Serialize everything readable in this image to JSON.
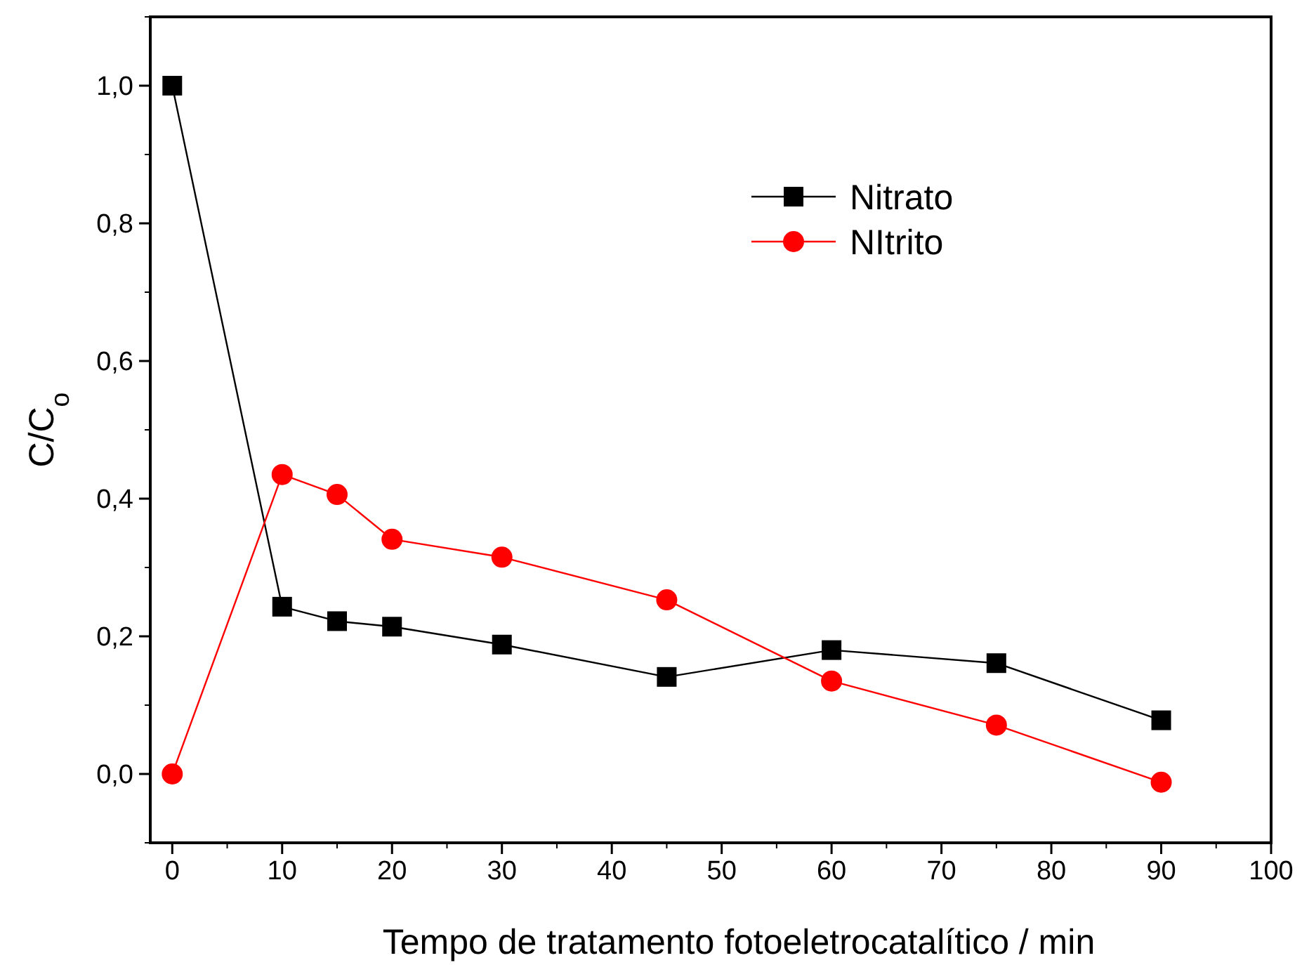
{
  "chart_data": {
    "type": "line",
    "xlabel": "Tempo de tratamento fotoeletrocatalítico  /   min",
    "ylabel": "C/C$_{o}$",
    "xlim": [
      -2,
      100
    ],
    "xticks": [
      0,
      10,
      20,
      30,
      40,
      50,
      60,
      70,
      80,
      90,
      100
    ],
    "ylim": [
      -0.1,
      1.1
    ],
    "yticks": [
      {
        "value": 0,
        "label": "0,0"
      },
      {
        "value": 0.2,
        "label": "0,2"
      },
      {
        "value": 0.4,
        "label": "0,4"
      },
      {
        "value": 0.6,
        "label": "0,6"
      },
      {
        "value": 0.8,
        "label": "0,8"
      },
      {
        "value": 1,
        "label": "1,0"
      }
    ],
    "x": [
      0,
      10,
      15,
      20,
      30,
      45,
      60,
      75,
      90
    ],
    "series": [
      {
        "name": "Nitrato",
        "color": "#000000",
        "marker": "square",
        "values": [
          1.0,
          0.243,
          0.222,
          0.214,
          0.188,
          0.141,
          0.18,
          0.161,
          0.078
        ]
      },
      {
        "name": "NItrito",
        "color": "#ff0000",
        "marker": "circle",
        "values": [
          0.0,
          0.435,
          0.406,
          0.341,
          0.315,
          0.253,
          0.135,
          0.071,
          -0.012
        ]
      }
    ],
    "legend": "top right",
    "grid": false
  }
}
